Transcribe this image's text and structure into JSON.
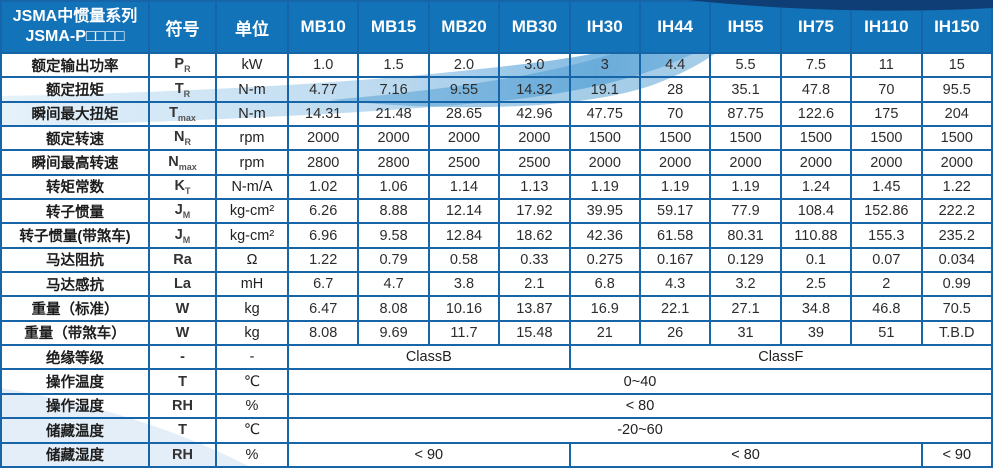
{
  "table": {
    "title_line1": "JSMA中惯量系列",
    "title_line2": "JSMA-P□□□□",
    "symbol_header": "符号",
    "unit_header": "单位",
    "models": [
      "MB10",
      "MB15",
      "MB20",
      "MB30",
      "IH30",
      "IH44",
      "IH55",
      "IH75",
      "IH110",
      "IH150"
    ],
    "rows": [
      {
        "label": "额定输出功率",
        "symbol": "P",
        "symbol_sub": "R",
        "unit": "kW",
        "values": [
          "1.0",
          "1.5",
          "2.0",
          "3.0",
          "3",
          "4.4",
          "5.5",
          "7.5",
          "11",
          "15"
        ]
      },
      {
        "label": "额定扭矩",
        "symbol": "T",
        "symbol_sub": "R",
        "unit": "N-m",
        "values": [
          "4.77",
          "7.16",
          "9.55",
          "14.32",
          "19.1",
          "28",
          "35.1",
          "47.8",
          "70",
          "95.5"
        ]
      },
      {
        "label": "瞬间最大扭矩",
        "symbol": "T",
        "symbol_sub": "max",
        "unit": "N-m",
        "values": [
          "14.31",
          "21.48",
          "28.65",
          "42.96",
          "47.75",
          "70",
          "87.75",
          "122.6",
          "175",
          "204"
        ]
      },
      {
        "label": "额定转速",
        "symbol": "N",
        "symbol_sub": "R",
        "unit": "rpm",
        "values": [
          "2000",
          "2000",
          "2000",
          "2000",
          "1500",
          "1500",
          "1500",
          "1500",
          "1500",
          "1500"
        ]
      },
      {
        "label": "瞬间最高转速",
        "symbol": "N",
        "symbol_sub": "max",
        "unit": "rpm",
        "values": [
          "2800",
          "2800",
          "2500",
          "2500",
          "2000",
          "2000",
          "2000",
          "2000",
          "2000",
          "2000"
        ]
      },
      {
        "label": "转矩常数",
        "symbol": "K",
        "symbol_sub": "T",
        "unit": "N-m/A",
        "values": [
          "1.02",
          "1.06",
          "1.14",
          "1.13",
          "1.19",
          "1.19",
          "1.19",
          "1.24",
          "1.45",
          "1.22"
        ]
      },
      {
        "label": "转子惯量",
        "symbol": "J",
        "symbol_sub": "M",
        "unit": "kg-cm²",
        "values": [
          "6.26",
          "8.88",
          "12.14",
          "17.92",
          "39.95",
          "59.17",
          "77.9",
          "108.4",
          "152.86",
          "222.2"
        ]
      },
      {
        "label": "转子惯量(带煞车)",
        "symbol": "J",
        "symbol_sub": "M",
        "unit": "kg-cm²",
        "values": [
          "6.96",
          "9.58",
          "12.84",
          "18.62",
          "42.36",
          "61.58",
          "80.31",
          "110.88",
          "155.3",
          "235.2"
        ]
      },
      {
        "label": "马达阻抗",
        "symbol": "Ra",
        "symbol_sub": "",
        "unit": "Ω",
        "values": [
          "1.22",
          "0.79",
          "0.58",
          "0.33",
          "0.275",
          "0.167",
          "0.129",
          "0.1",
          "0.07",
          "0.034"
        ]
      },
      {
        "label": "马达感抗",
        "symbol": "La",
        "symbol_sub": "",
        "unit": "mH",
        "values": [
          "6.7",
          "4.7",
          "3.8",
          "2.1",
          "6.8",
          "4.3",
          "3.2",
          "2.5",
          "2",
          "0.99"
        ]
      },
      {
        "label": "重量（标准）",
        "symbol": "W",
        "symbol_sub": "",
        "unit": "kg",
        "values": [
          "6.47",
          "8.08",
          "10.16",
          "13.87",
          "16.9",
          "22.1",
          "27.1",
          "34.8",
          "46.8",
          "70.5"
        ]
      },
      {
        "label": "重量（带煞车）",
        "symbol": "W",
        "symbol_sub": "",
        "unit": "kg",
        "values": [
          "8.08",
          "9.69",
          "11.7",
          "15.48",
          "21",
          "26",
          "31",
          "39",
          "51",
          "T.B.D"
        ]
      },
      {
        "label": "绝缘等级",
        "symbol": "-",
        "symbol_sub": "",
        "unit": "-",
        "spans": [
          {
            "text": "ClassB",
            "cols": 4
          },
          {
            "text": "ClassF",
            "cols": 6
          }
        ]
      },
      {
        "label": "操作温度",
        "symbol": "T",
        "symbol_sub": "",
        "unit": "℃",
        "spans": [
          {
            "text": "0~40",
            "cols": 10
          }
        ]
      },
      {
        "label": "操作湿度",
        "symbol": "RH",
        "symbol_sub": "",
        "unit": "%",
        "spans": [
          {
            "text": "< 80",
            "cols": 10
          }
        ]
      },
      {
        "label": "储藏温度",
        "symbol": "T",
        "symbol_sub": "",
        "unit": "℃",
        "spans": [
          {
            "text": "-20~60",
            "cols": 10
          }
        ]
      },
      {
        "label": "储藏湿度",
        "symbol": "RH",
        "symbol_sub": "",
        "unit": "%",
        "spans": [
          {
            "text": "< 90",
            "cols": 4
          },
          {
            "text": "< 80",
            "cols": 5
          },
          {
            "text": "< 90",
            "cols": 1
          }
        ]
      }
    ],
    "colors": {
      "header_bg": "#1273b9",
      "border": "#1565a8",
      "swoosh_dark": "#0e3e75",
      "swoosh_mid": "#4d9bd2",
      "swoosh_light": "#cfe5f5"
    }
  }
}
